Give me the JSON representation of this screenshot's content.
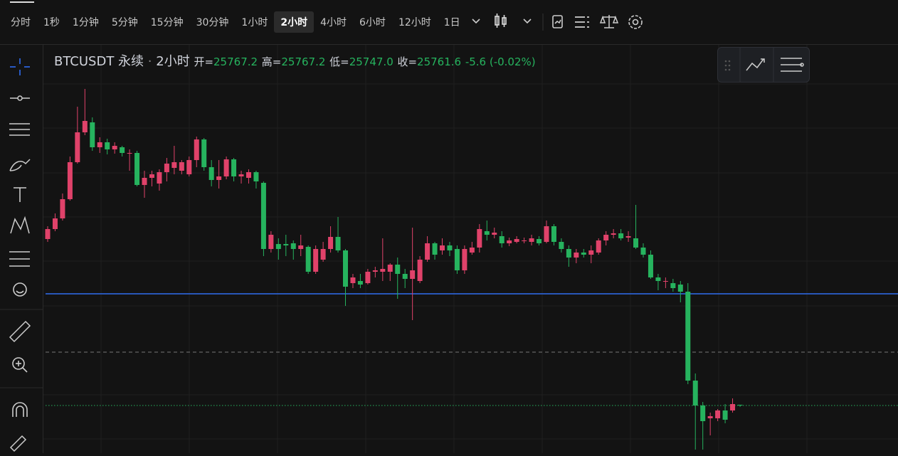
{
  "toolbar": {
    "intervals": [
      "分时",
      "1秒",
      "1分钟",
      "5分钟",
      "15分钟",
      "30分钟",
      "1小时",
      "2小时",
      "4小时",
      "6小时",
      "12小时",
      "1日"
    ],
    "selected": 7
  },
  "chart_data": {
    "type": "candlestick",
    "title": "BTCUSDT 永续",
    "interval": "2小时",
    "ohlc_labels": [
      {
        "label": "开=",
        "value": "25767.2"
      },
      {
        "label": "高=",
        "value": "25767.2"
      },
      {
        "label": "低=",
        "value": "25747.0"
      },
      {
        "label": "收=",
        "value": "25761.6"
      }
    ],
    "change": "-5.6 (-0.02%)",
    "up_color": "#e0426a",
    "down_color": "#26b35e",
    "ylim": [
      25291,
      29330
    ],
    "price_lines": [
      {
        "value": 26859,
        "color": "#2f6cf0",
        "style": "solid"
      },
      {
        "value": 26285,
        "color": "#777777",
        "style": "dashed"
      },
      {
        "value": 25760,
        "color": "#26b35e",
        "style": "dotted"
      }
    ],
    "candles": [
      [
        27398,
        27524,
        27370,
        27496
      ],
      [
        27496,
        27650,
        27475,
        27601
      ],
      [
        27601,
        27846,
        27580,
        27790
      ],
      [
        27790,
        28210,
        27776,
        28154
      ],
      [
        28154,
        28700,
        28140,
        28448
      ],
      [
        28448,
        28875,
        28420,
        28560
      ],
      [
        28546,
        28595,
        28266,
        28301
      ],
      [
        28301,
        28399,
        28245,
        28350
      ],
      [
        28350,
        28385,
        28231,
        28280
      ],
      [
        28280,
        28350,
        28238,
        28315
      ],
      [
        28301,
        28315,
        28210,
        28245
      ],
      [
        28245,
        28280,
        28070,
        28245
      ],
      [
        28245,
        28266,
        27916,
        27930
      ],
      [
        27930,
        28070,
        27804,
        28000
      ],
      [
        28000,
        28070,
        27916,
        28035
      ],
      [
        27944,
        28084,
        27874,
        28056
      ],
      [
        28056,
        28196,
        27965,
        28140
      ],
      [
        28098,
        28315,
        28035,
        28154
      ],
      [
        28070,
        28175,
        28035,
        28154
      ],
      [
        28035,
        28210,
        28014,
        28175
      ],
      [
        28175,
        28406,
        28105,
        28378
      ],
      [
        28378,
        28392,
        28070,
        28105
      ],
      [
        28105,
        28175,
        27916,
        27979
      ],
      [
        27979,
        28175,
        27895,
        28014
      ],
      [
        28014,
        28210,
        27986,
        28182
      ],
      [
        28182,
        28196,
        27965,
        28014
      ],
      [
        28014,
        28070,
        27944,
        28035
      ],
      [
        28000,
        28084,
        27944,
        28056
      ],
      [
        28056,
        28070,
        27895,
        27965
      ],
      [
        27951,
        27965,
        27230,
        27300
      ],
      [
        27300,
        27475,
        27265,
        27440
      ],
      [
        27349,
        27405,
        27195,
        27300
      ],
      [
        27349,
        27440,
        27230,
        27335
      ],
      [
        27356,
        27384,
        27195,
        27300
      ],
      [
        27300,
        27440,
        27230,
        27335
      ],
      [
        27321,
        27335,
        27055,
        27076
      ],
      [
        27076,
        27335,
        27055,
        27300
      ],
      [
        27195,
        27370,
        27174,
        27300
      ],
      [
        27300,
        27524,
        27265,
        27419
      ],
      [
        27419,
        27615,
        27265,
        27286
      ],
      [
        27286,
        27300,
        26740,
        26929
      ],
      [
        26964,
        27055,
        26915,
        27020
      ],
      [
        26985,
        27055,
        26915,
        26950
      ],
      [
        26964,
        27104,
        26950,
        27076
      ],
      [
        27076,
        27125,
        27020,
        27090
      ],
      [
        27076,
        27405,
        26985,
        27104
      ],
      [
        27076,
        27160,
        26985,
        27146
      ],
      [
        27146,
        27216,
        26810,
        27055
      ],
      [
        27055,
        27104,
        26915,
        27006
      ],
      [
        27006,
        27510,
        26600,
        27090
      ],
      [
        26985,
        27230,
        26964,
        27195
      ],
      [
        27195,
        27426,
        27174,
        27356
      ],
      [
        27356,
        27370,
        27195,
        27244
      ],
      [
        27286,
        27405,
        27244,
        27335
      ],
      [
        27335,
        27370,
        27230,
        27286
      ],
      [
        27300,
        27335,
        27055,
        27090
      ],
      [
        27090,
        27335,
        27055,
        27300
      ],
      [
        27265,
        27370,
        27244,
        27314
      ],
      [
        27314,
        27545,
        27265,
        27496
      ],
      [
        27475,
        27580,
        27384,
        27440
      ],
      [
        27440,
        27510,
        27405,
        27461
      ],
      [
        27426,
        27475,
        27314,
        27356
      ],
      [
        27356,
        27412,
        27328,
        27384
      ],
      [
        27370,
        27426,
        27356,
        27398
      ],
      [
        27384,
        27412,
        27356,
        27384
      ],
      [
        27370,
        27440,
        27335,
        27405
      ],
      [
        27398,
        27426,
        27335,
        27356
      ],
      [
        27370,
        27580,
        27356,
        27524
      ],
      [
        27524,
        27545,
        27335,
        27370
      ],
      [
        27370,
        27405,
        27265,
        27300
      ],
      [
        27300,
        27335,
        27125,
        27216
      ],
      [
        27216,
        27300,
        27160,
        27265
      ],
      [
        27265,
        27300,
        27216,
        27244
      ],
      [
        27244,
        27335,
        27160,
        27286
      ],
      [
        27265,
        27405,
        27244,
        27384
      ],
      [
        27384,
        27475,
        27335,
        27440
      ],
      [
        27440,
        27496,
        27405,
        27454
      ],
      [
        27454,
        27496,
        27384,
        27405
      ],
      [
        27412,
        27475,
        27370,
        27426
      ],
      [
        27405,
        27734,
        27300,
        27314
      ],
      [
        27314,
        27356,
        27216,
        27244
      ],
      [
        27244,
        27286,
        27006,
        27020
      ],
      [
        27020,
        27055,
        26894,
        26985
      ],
      [
        26985,
        27020,
        26915,
        26985
      ],
      [
        26964,
        27006,
        26880,
        26915
      ],
      [
        26950,
        26985,
        26775,
        26880
      ],
      [
        26880,
        26964,
        25970,
        26005
      ],
      [
        26005,
        26075,
        25326,
        25760
      ],
      [
        25760,
        25795,
        25326,
        25606
      ],
      [
        25634,
        25690,
        25466,
        25655
      ],
      [
        25634,
        25725,
        25606,
        25711
      ],
      [
        25711,
        25774,
        25585,
        25620
      ],
      [
        25711,
        25830,
        25690,
        25774
      ],
      [
        25767.2,
        25767.2,
        25747.0,
        25761.6
      ]
    ]
  }
}
